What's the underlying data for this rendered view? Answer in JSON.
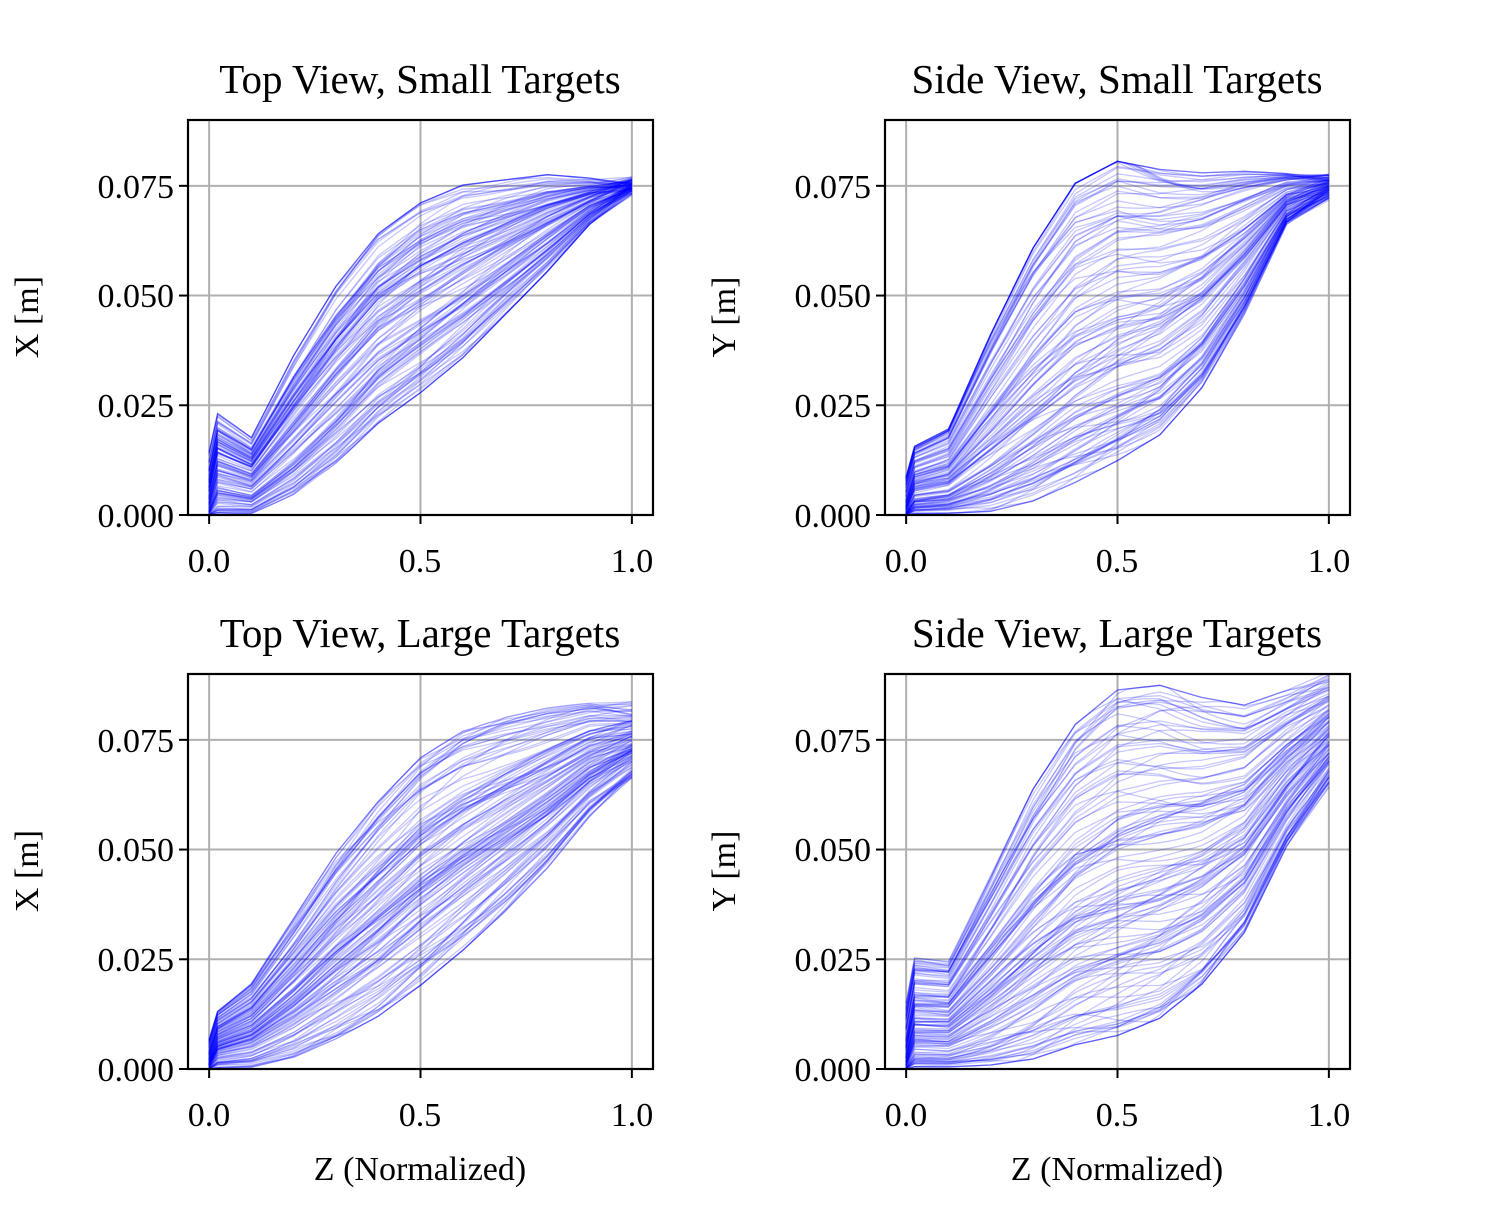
{
  "chart_data": [
    {
      "type": "line",
      "title": "Top View, Small Targets",
      "xlabel": "",
      "ylabel": "X [m]",
      "xlim": [
        -0.05,
        1.05
      ],
      "ylim": [
        0.0,
        0.09
      ],
      "xticks": [
        0.0,
        0.5,
        1.0
      ],
      "xtick_labels": [
        "0.0",
        "0.5",
        "1.0"
      ],
      "yticks": [
        0.0,
        0.025,
        0.05,
        0.075
      ],
      "ytick_labels": [
        "0.000",
        "0.025",
        "0.050",
        "0.075"
      ],
      "grid": true,
      "legend": "none",
      "color": "#0000ff",
      "series_count_approx": 500,
      "envelope": {
        "x": [
          0.0,
          0.1,
          0.2,
          0.3,
          0.4,
          0.5,
          0.6,
          0.7,
          0.8,
          0.9,
          1.0
        ],
        "upper": [
          0.025,
          0.018,
          0.037,
          0.053,
          0.065,
          0.072,
          0.076,
          0.077,
          0.078,
          0.077,
          0.076
        ],
        "median": [
          0.002,
          0.007,
          0.018,
          0.029,
          0.04,
          0.05,
          0.058,
          0.065,
          0.071,
          0.074,
          0.075
        ],
        "lower": [
          0.0,
          0.0,
          0.004,
          0.011,
          0.02,
          0.027,
          0.035,
          0.045,
          0.055,
          0.066,
          0.074
        ]
      }
    },
    {
      "type": "line",
      "title": "Side View, Small Targets",
      "xlabel": "",
      "ylabel": "Y [m]",
      "xlim": [
        -0.05,
        1.05
      ],
      "ylim": [
        0.0,
        0.09
      ],
      "xticks": [
        0.0,
        0.5,
        1.0
      ],
      "xtick_labels": [
        "0.0",
        "0.5",
        "1.0"
      ],
      "yticks": [
        0.0,
        0.025,
        0.05,
        0.075
      ],
      "ytick_labels": [
        "0.000",
        "0.025",
        "0.050",
        "0.075"
      ],
      "grid": true,
      "legend": "none",
      "color": "#0000ff",
      "series_count_approx": 500,
      "envelope": {
        "x": [
          0.0,
          0.1,
          0.2,
          0.3,
          0.4,
          0.5,
          0.6,
          0.7,
          0.8,
          0.9,
          1.0
        ],
        "upper": [
          0.015,
          0.02,
          0.042,
          0.062,
          0.077,
          0.082,
          0.08,
          0.079,
          0.079,
          0.078,
          0.077
        ],
        "median": [
          0.002,
          0.008,
          0.019,
          0.03,
          0.041,
          0.051,
          0.059,
          0.066,
          0.071,
          0.074,
          0.075
        ],
        "lower": [
          0.0,
          0.0,
          0.0,
          0.002,
          0.006,
          0.011,
          0.017,
          0.028,
          0.045,
          0.066,
          0.073
        ]
      }
    },
    {
      "type": "line",
      "title": "Top View, Large Targets",
      "xlabel": "Z (Normalized)",
      "ylabel": "X [m]",
      "xlim": [
        -0.05,
        1.05
      ],
      "ylim": [
        0.0,
        0.09
      ],
      "xticks": [
        0.0,
        0.5,
        1.0
      ],
      "xtick_labels": [
        "0.0",
        "0.5",
        "1.0"
      ],
      "yticks": [
        0.0,
        0.025,
        0.05,
        0.075
      ],
      "ytick_labels": [
        "0.000",
        "0.025",
        "0.050",
        "0.075"
      ],
      "grid": true,
      "legend": "none",
      "color": "#0000ff",
      "series_count_approx": 500,
      "envelope": {
        "x": [
          0.0,
          0.1,
          0.2,
          0.3,
          0.4,
          0.5,
          0.6,
          0.7,
          0.8,
          0.9,
          1.0
        ],
        "upper": [
          0.012,
          0.02,
          0.035,
          0.05,
          0.062,
          0.072,
          0.078,
          0.081,
          0.083,
          0.084,
          0.083
        ],
        "median": [
          0.002,
          0.007,
          0.017,
          0.028,
          0.038,
          0.048,
          0.056,
          0.063,
          0.068,
          0.071,
          0.073
        ],
        "lower": [
          0.0,
          0.0,
          0.002,
          0.006,
          0.011,
          0.018,
          0.026,
          0.035,
          0.045,
          0.057,
          0.066
        ]
      }
    },
    {
      "type": "line",
      "title": "Side View, Large Targets",
      "xlabel": "Z (Normalized)",
      "ylabel": "Y [m]",
      "xlim": [
        -0.05,
        1.05
      ],
      "ylim": [
        0.0,
        0.09
      ],
      "xticks": [
        0.0,
        0.5,
        1.0
      ],
      "xtick_labels": [
        "0.0",
        "0.5",
        "1.0"
      ],
      "yticks": [
        0.0,
        0.025,
        0.05,
        0.075
      ],
      "ytick_labels": [
        "0.000",
        "0.025",
        "0.050",
        "0.075"
      ],
      "grid": true,
      "legend": "none",
      "color": "#0000ff",
      "series_count_approx": 500,
      "envelope": {
        "x": [
          0.0,
          0.1,
          0.2,
          0.3,
          0.4,
          0.5,
          0.6,
          0.7,
          0.8,
          0.9,
          1.0
        ],
        "upper": [
          0.026,
          0.025,
          0.045,
          0.065,
          0.08,
          0.088,
          0.089,
          0.086,
          0.084,
          0.087,
          0.09
        ],
        "median": [
          0.002,
          0.008,
          0.019,
          0.03,
          0.041,
          0.05,
          0.058,
          0.064,
          0.069,
          0.072,
          0.074
        ],
        "lower": [
          0.0,
          0.0,
          0.0,
          0.001,
          0.004,
          0.006,
          0.01,
          0.018,
          0.03,
          0.05,
          0.065
        ]
      }
    }
  ]
}
